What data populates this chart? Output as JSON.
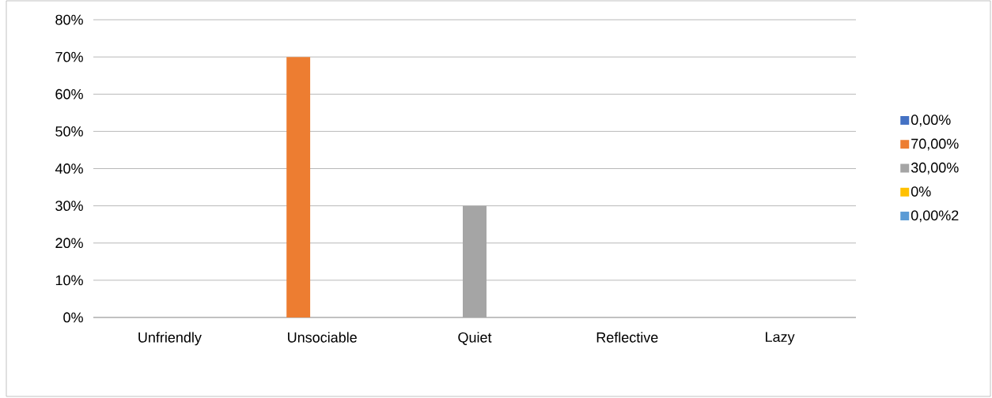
{
  "chart_data": {
    "type": "bar",
    "categories": [
      "Unfriendly",
      "Unsociable",
      "Quiet",
      "Reflective",
      "Lazy"
    ],
    "series": [
      {
        "name": "0,00%",
        "color": "#4472c4",
        "values": [
          0,
          null,
          null,
          null,
          null
        ]
      },
      {
        "name": "70,00%",
        "color": "#ed7d31",
        "values": [
          null,
          70,
          null,
          null,
          null
        ]
      },
      {
        "name": "30,00%",
        "color": "#a5a5a5",
        "values": [
          null,
          null,
          30,
          null,
          null
        ]
      },
      {
        "name": "0%",
        "color": "#ffc000",
        "values": [
          null,
          null,
          null,
          0,
          null
        ]
      },
      {
        "name": "0,00%2",
        "color": "#5b9bd5",
        "values": [
          null,
          null,
          null,
          null,
          0
        ]
      }
    ],
    "ylim": [
      0,
      80
    ],
    "yticks": [
      {
        "value": 0,
        "label": "0%"
      },
      {
        "value": 10,
        "label": "10%"
      },
      {
        "value": 20,
        "label": "20%"
      },
      {
        "value": 30,
        "label": "30%"
      },
      {
        "value": 40,
        "label": "40%"
      },
      {
        "value": 50,
        "label": "50%"
      },
      {
        "value": 60,
        "label": "60%"
      },
      {
        "value": 70,
        "label": "70%"
      },
      {
        "value": 80,
        "label": "80%"
      }
    ],
    "grid": "y",
    "legend": "right"
  }
}
